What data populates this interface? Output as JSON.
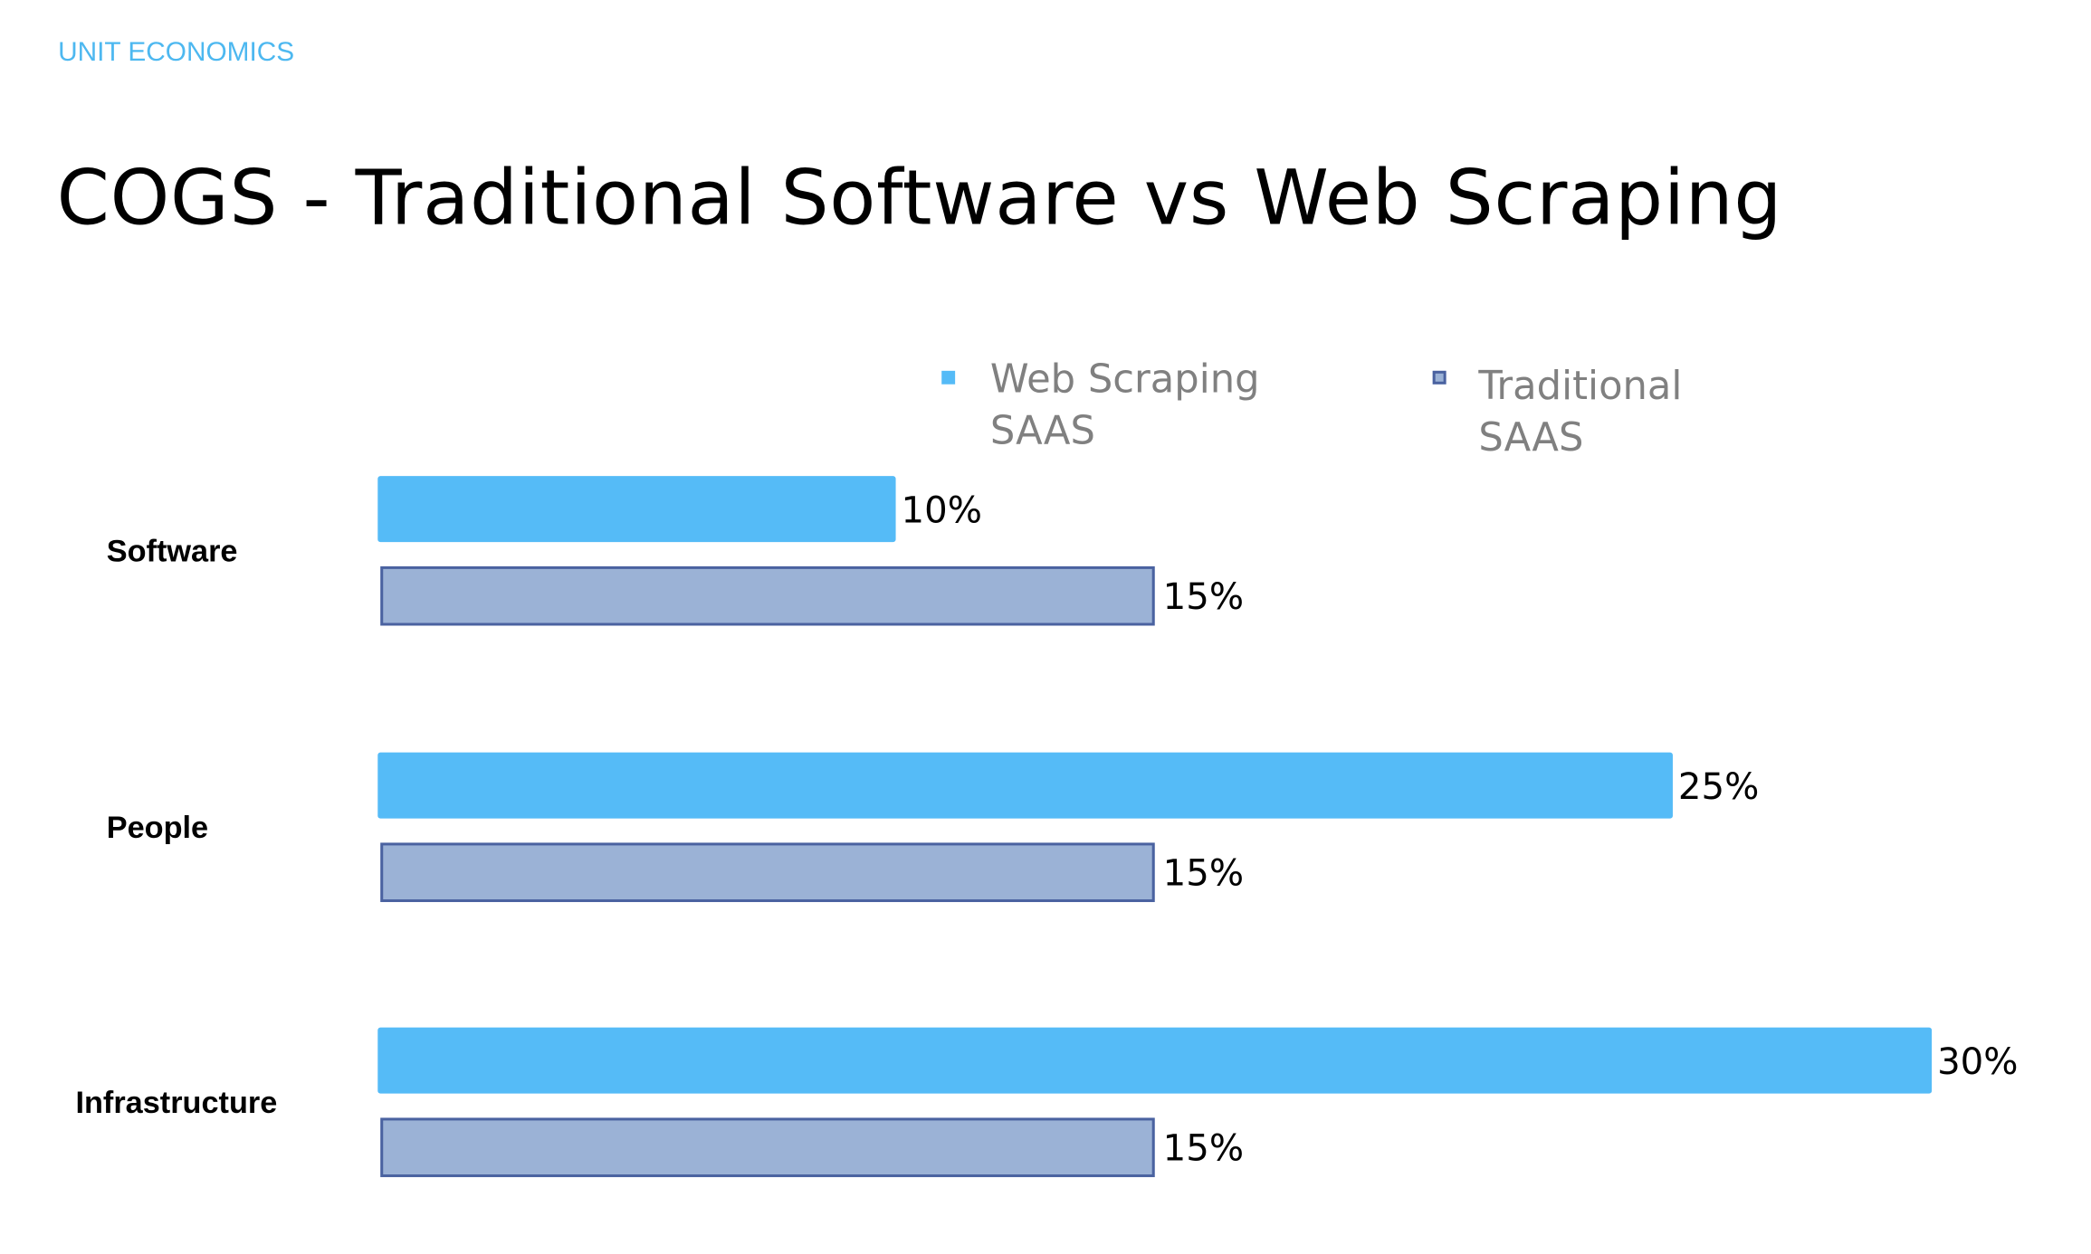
{
  "header": {
    "eyebrow": "UNIT ECONOMICS",
    "title": "COGS - Traditional Software vs Web Scraping"
  },
  "colors": {
    "web": "#55bbf7",
    "trad_fill": "#9bb2d6",
    "trad_border": "#4a62a0",
    "eyebrow": "#4db8f0"
  },
  "chart_data": {
    "type": "bar",
    "orientation": "horizontal",
    "title": "COGS - Traditional Software vs Web Scraping",
    "categories": [
      "Software",
      "People",
      "Infrastructure"
    ],
    "series": [
      {
        "name": "Web Scraping SAAS",
        "values": [
          10,
          25,
          30
        ],
        "labels": [
          "10%",
          "25%",
          "30%"
        ]
      },
      {
        "name": "Traditional SAAS",
        "values": [
          15,
          15,
          15
        ],
        "labels": [
          "15%",
          "15%",
          "15%"
        ]
      }
    ],
    "legend": {
      "position": "top",
      "items": [
        {
          "line1": "Web Scraping",
          "line2": "SAAS"
        },
        {
          "line1": "Traditional",
          "line2": "SAAS"
        }
      ]
    },
    "xlabel": "",
    "ylabel": "",
    "xlim": [
      0,
      30
    ],
    "grid": false
  }
}
